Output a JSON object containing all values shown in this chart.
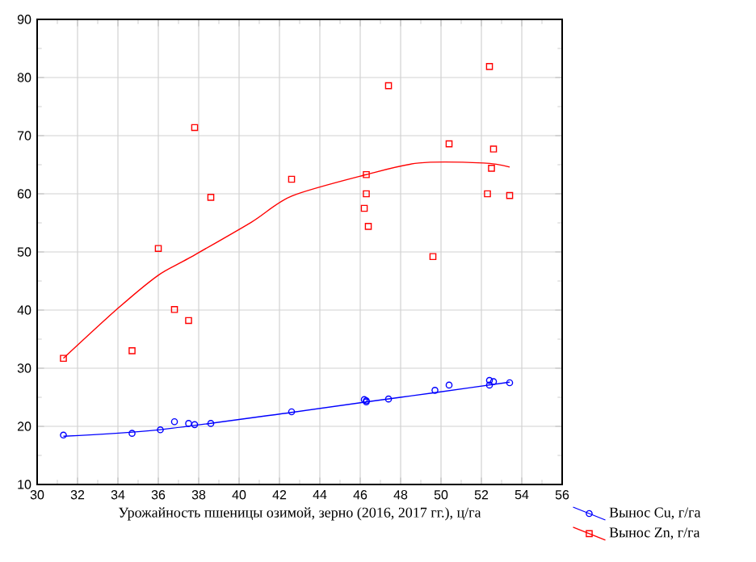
{
  "chart_data": {
    "type": "scatter",
    "xlabel": "Урожайность пшеницы озимой, зерно (2016, 2017 гг.), ц/га",
    "xlim": [
      30,
      56
    ],
    "xticks": [
      30,
      32,
      34,
      36,
      38,
      40,
      42,
      44,
      46,
      48,
      50,
      52,
      54,
      56
    ],
    "ylim": [
      10,
      90
    ],
    "yticks": [
      10,
      20,
      30,
      40,
      50,
      60,
      70,
      80,
      90
    ],
    "grid": true,
    "legend": "bottom right",
    "series": [
      {
        "name": "Вынос Cu, г/га",
        "color": "#0000ff",
        "marker": "circle",
        "x": [
          31.3,
          34.7,
          36.1,
          36.8,
          37.5,
          37.8,
          38.6,
          42.6,
          46.2,
          46.3,
          46.3,
          47.4,
          49.7,
          50.4,
          52.4,
          52.4,
          52.6,
          53.4
        ],
        "values": [
          18.5,
          18.8,
          19.4,
          20.8,
          20.5,
          20.3,
          20.5,
          22.5,
          24.6,
          24.4,
          24.2,
          24.7,
          26.2,
          27.1,
          27.1,
          27.9,
          27.7,
          27.5
        ]
      },
      {
        "name": "Вынос Zn, г/га",
        "color": "#ff0000",
        "marker": "square",
        "x": [
          31.3,
          34.7,
          36.0,
          36.8,
          37.5,
          37.8,
          38.6,
          42.6,
          46.2,
          46.3,
          46.3,
          46.4,
          47.4,
          49.6,
          50.4,
          52.3,
          52.4,
          52.5,
          52.6,
          53.4
        ],
        "values": [
          31.7,
          33.0,
          50.6,
          40.1,
          38.2,
          71.4,
          59.4,
          62.5,
          57.5,
          63.3,
          60.0,
          54.4,
          78.6,
          49.2,
          68.6,
          60.0,
          81.9,
          64.4,
          67.7,
          59.7
        ]
      },
      {
        "type": "line",
        "color": "#0000ff",
        "x": [
          31.3,
          36.0,
          42.6,
          46.3,
          49.7,
          53.4
        ],
        "values": [
          18.3,
          19.4,
          22.4,
          24.2,
          25.8,
          27.6
        ]
      },
      {
        "type": "line",
        "color": "#ff0000",
        "x": [
          31.3,
          34.0,
          36.0,
          37.5,
          40.6,
          42.6,
          46.3,
          48.9,
          52.1,
          53.4
        ],
        "values": [
          31.7,
          40.3,
          46.0,
          48.9,
          55.1,
          59.6,
          63.3,
          65.3,
          65.3,
          64.6
        ]
      }
    ]
  }
}
